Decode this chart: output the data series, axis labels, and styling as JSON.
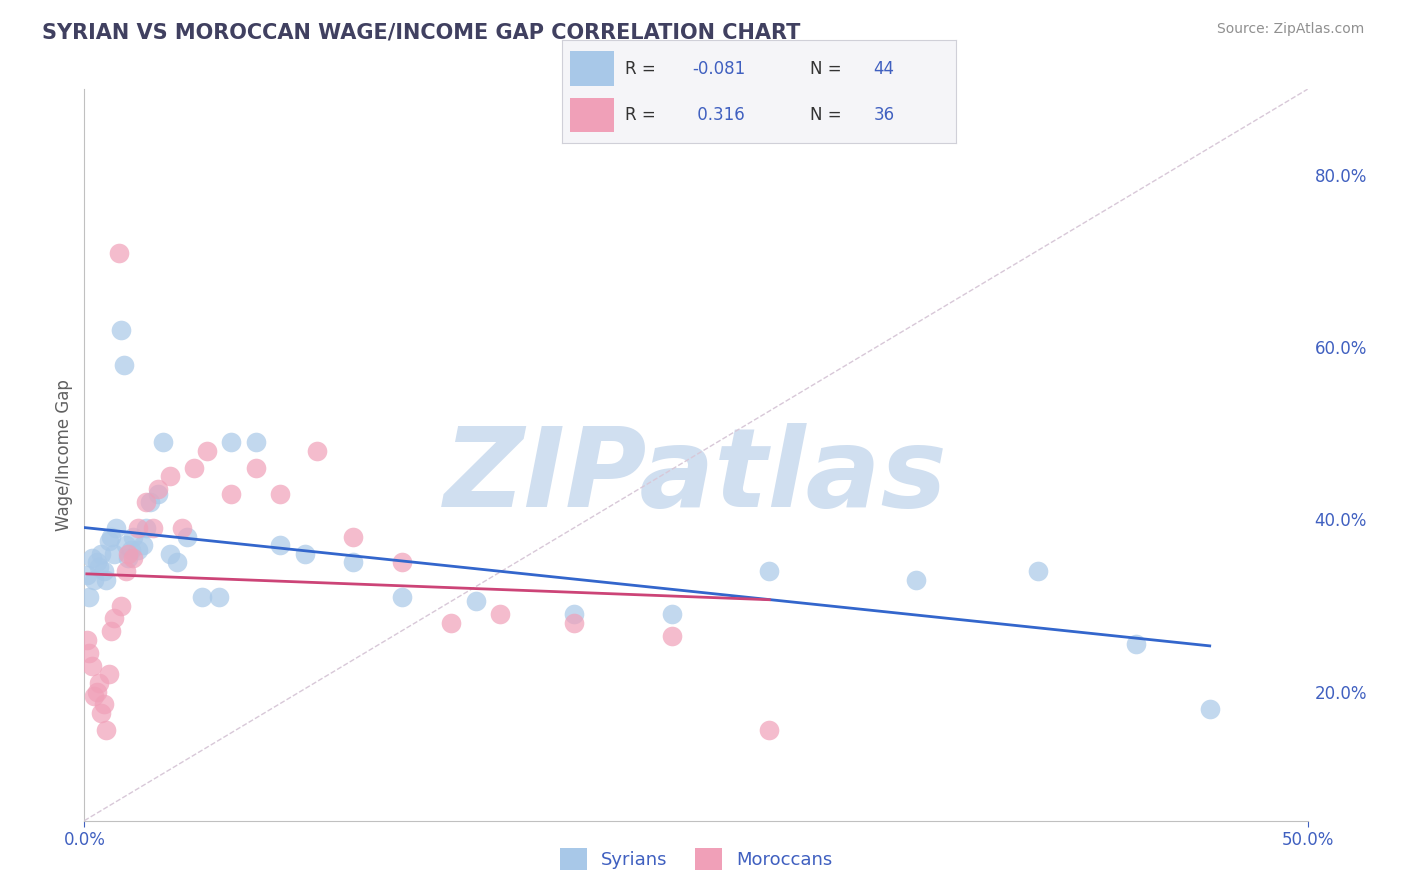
{
  "title": "SYRIAN VS MOROCCAN WAGE/INCOME GAP CORRELATION CHART",
  "source_text": "Source: ZipAtlas.com",
  "ylabel": "Wage/Income Gap",
  "xlim": [
    0.0,
    0.5
  ],
  "ylim": [
    0.05,
    0.9
  ],
  "xticks": [
    0.0,
    0.5
  ],
  "xticklabels": [
    "0.0%",
    "50.0%"
  ],
  "yticks_right": [
    0.2,
    0.4,
    0.6,
    0.8
  ],
  "ytick_right_labels": [
    "20.0%",
    "40.0%",
    "60.0%",
    "80.0%"
  ],
  "syrian_color": "#a8c8e8",
  "moroccan_color": "#f0a0b8",
  "syrian_line_color": "#3366cc",
  "moroccan_line_color": "#cc4477",
  "syrian_r": -0.081,
  "syrian_n": 44,
  "moroccan_r": 0.316,
  "moroccan_n": 36,
  "watermark": "ZIPatlas",
  "watermark_color": "#d0dff0",
  "legend_label_syrians": "Syrians",
  "legend_label_moroccans": "Moroccans",
  "syrian_points_x": [
    0.001,
    0.002,
    0.003,
    0.004,
    0.005,
    0.006,
    0.007,
    0.008,
    0.009,
    0.01,
    0.011,
    0.012,
    0.013,
    0.015,
    0.016,
    0.017,
    0.018,
    0.019,
    0.02,
    0.022,
    0.024,
    0.025,
    0.027,
    0.03,
    0.032,
    0.035,
    0.038,
    0.042,
    0.048,
    0.055,
    0.06,
    0.07,
    0.08,
    0.09,
    0.11,
    0.13,
    0.16,
    0.2,
    0.24,
    0.28,
    0.34,
    0.39,
    0.43,
    0.46
  ],
  "syrian_points_y": [
    0.335,
    0.31,
    0.355,
    0.33,
    0.35,
    0.345,
    0.36,
    0.34,
    0.33,
    0.375,
    0.38,
    0.36,
    0.39,
    0.62,
    0.58,
    0.37,
    0.355,
    0.365,
    0.38,
    0.365,
    0.37,
    0.39,
    0.42,
    0.43,
    0.49,
    0.36,
    0.35,
    0.38,
    0.31,
    0.31,
    0.49,
    0.49,
    0.37,
    0.36,
    0.35,
    0.31,
    0.305,
    0.29,
    0.29,
    0.34,
    0.33,
    0.34,
    0.255,
    0.18
  ],
  "moroccan_points_x": [
    0.001,
    0.002,
    0.003,
    0.004,
    0.005,
    0.006,
    0.007,
    0.008,
    0.009,
    0.01,
    0.011,
    0.012,
    0.014,
    0.015,
    0.017,
    0.018,
    0.02,
    0.022,
    0.025,
    0.028,
    0.03,
    0.035,
    0.04,
    0.045,
    0.05,
    0.06,
    0.07,
    0.08,
    0.095,
    0.11,
    0.13,
    0.15,
    0.17,
    0.2,
    0.24,
    0.28
  ],
  "moroccan_points_y": [
    0.26,
    0.245,
    0.23,
    0.195,
    0.2,
    0.21,
    0.175,
    0.185,
    0.155,
    0.22,
    0.27,
    0.285,
    0.71,
    0.3,
    0.34,
    0.36,
    0.355,
    0.39,
    0.42,
    0.39,
    0.435,
    0.45,
    0.39,
    0.46,
    0.48,
    0.43,
    0.46,
    0.43,
    0.48,
    0.38,
    0.35,
    0.28,
    0.29,
    0.28,
    0.265,
    0.155
  ],
  "background_color": "#ffffff",
  "grid_color": "#d8d8d8",
  "title_color": "#404060",
  "axis_color": "#4060c0",
  "legend_box_color": "#f5f5f8",
  "legend_border_color": "#d0d0d8"
}
